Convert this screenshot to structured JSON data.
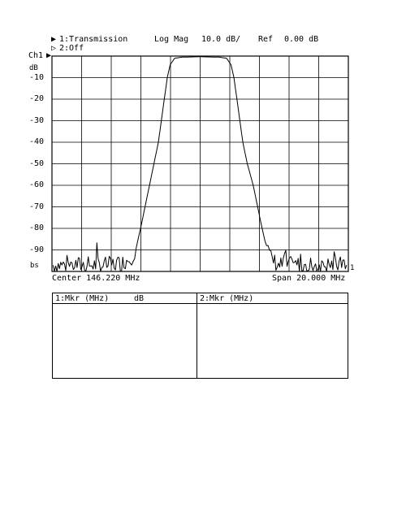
{
  "header": {
    "channel1_marker": "▶",
    "channel1_label": "1:Transmission",
    "format": "Log Mag",
    "scale": "10.0 dB/",
    "ref_label": "Ref",
    "ref_value": "0.00 dB",
    "channel2_marker": "▷",
    "channel2_label": "2:Off",
    "ch_label": "Ch1",
    "ch_marker": "▶",
    "unit": "dB",
    "bottom_marker": "bs",
    "right_marker": "1"
  },
  "footer": {
    "center": "Center 146.220 MHz",
    "span": "Span 20.000 MHz"
  },
  "marker_table": {
    "col1": "1:Mkr (MHz)",
    "col1_unit": "dB",
    "col2": "2:Mkr (MHz)"
  },
  "chart_data": {
    "type": "line",
    "ylim": [
      -100,
      0
    ],
    "xlim": [
      136.22,
      156.22
    ],
    "x_divisions": 10,
    "y_divisions": 10,
    "grid": true,
    "ytick_labels": [
      "-10",
      "-20",
      "-30",
      "-40",
      "-50",
      "-60",
      "-70",
      "-80",
      "-90"
    ],
    "series": [
      {
        "color": "#000000",
        "x": [
          136.3,
          138.0,
          140.0,
          141.0,
          141.6,
          141.8,
          142.0,
          142.2,
          142.5,
          142.8,
          143.1,
          143.4,
          143.6,
          143.8,
          144.0,
          144.2,
          144.5,
          145.0,
          146.2,
          147.5,
          148.0,
          148.3,
          148.5,
          148.7,
          148.9,
          149.1,
          149.4,
          149.8,
          150.1,
          150.4,
          150.6,
          150.8,
          151.0,
          151.5,
          153.0,
          156.1
        ],
        "y": [
          -97,
          -97,
          -97,
          -96,
          -93,
          -91,
          -86,
          -80,
          -70,
          -60,
          -50,
          -40,
          -30,
          -20,
          -10,
          -4,
          -1,
          -0.5,
          -0.3,
          -0.5,
          -1,
          -4,
          -10,
          -20,
          -30,
          -40,
          -50,
          -60,
          -70,
          -80,
          -86,
          -90,
          -94,
          -97,
          -97,
          -97
        ]
      }
    ]
  }
}
